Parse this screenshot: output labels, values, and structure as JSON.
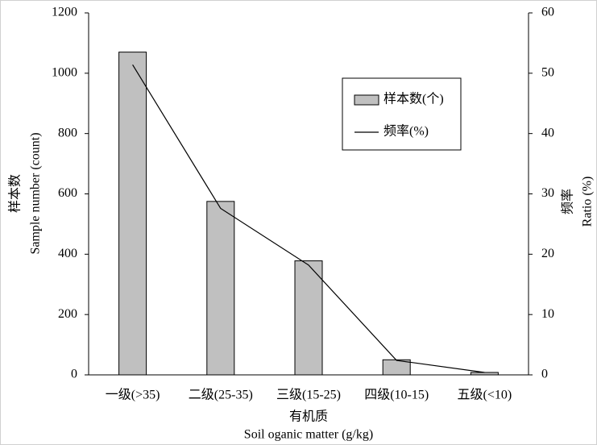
{
  "chart_data": {
    "type": "combo",
    "categories": [
      "一级(>35)",
      "二级(25-35)",
      "三级(15-25)",
      "四级(10-15)",
      "五级(<10)"
    ],
    "series": [
      {
        "name": "样本数(个)",
        "type": "bar",
        "color": "#c0c0c0",
        "values": [
          1070,
          575,
          378,
          50,
          8
        ]
      },
      {
        "name": "频率(%)",
        "type": "line",
        "color": "#000000",
        "axis": "y2",
        "values": [
          51.4,
          27.6,
          18.2,
          2.4,
          0.4
        ]
      }
    ],
    "ylim": [
      0,
      1200
    ],
    "yticks": [
      0,
      200,
      400,
      600,
      800,
      1000,
      1200
    ],
    "y2lim": [
      0,
      60
    ],
    "y2ticks": [
      0,
      10,
      20,
      30,
      40,
      50,
      60
    ],
    "ylabel": [
      "样本数",
      "Sample number (count)"
    ],
    "y2label": [
      "频率",
      "Ratio (%)"
    ],
    "xlabel": [
      "有机质",
      "Soil oganic matter (g/kg)"
    ],
    "grid": false,
    "legend": "upper right"
  }
}
